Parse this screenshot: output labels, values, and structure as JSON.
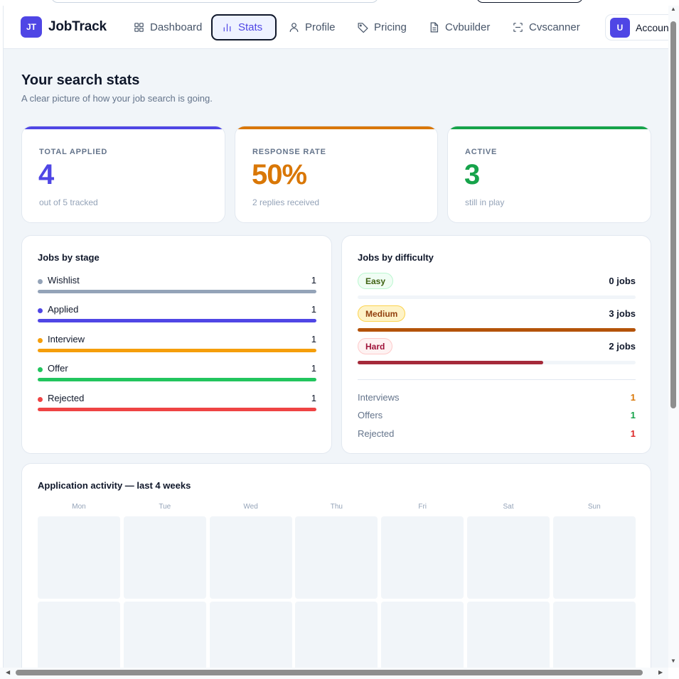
{
  "nav": {
    "logo_initials": "JT",
    "logo_text": "JobTrack",
    "items": [
      {
        "label": "Dashboard",
        "icon": "grid-icon"
      },
      {
        "label": "Stats",
        "icon": "bar-chart-icon"
      },
      {
        "label": "Profile",
        "icon": "user-icon"
      },
      {
        "label": "Pricing",
        "icon": "tag-icon"
      },
      {
        "label": "Cvbuilder",
        "icon": "document-icon"
      },
      {
        "label": "Cvscanner",
        "icon": "scan-icon"
      }
    ],
    "active_item": "Stats",
    "account_initial": "U",
    "account_label": "Accoun"
  },
  "page": {
    "title": "Your search stats",
    "subtitle": "A clear picture of how your job search is going."
  },
  "stats": [
    {
      "label": "TOTAL APPLIED",
      "value": "4",
      "note": "out of 5 tracked",
      "color": "#4f46e5"
    },
    {
      "label": "RESPONSE RATE",
      "value": "50%",
      "note": "2 replies received",
      "color": "#d97706"
    },
    {
      "label": "ACTIVE",
      "value": "3",
      "note": "still in play",
      "color": "#16a34a"
    }
  ],
  "stages": {
    "title": "Jobs by stage",
    "items": [
      {
        "name": "Wishlist",
        "count": "1",
        "color": "#94a3b8"
      },
      {
        "name": "Applied",
        "count": "1",
        "color": "#4f46e5"
      },
      {
        "name": "Interview",
        "count": "1",
        "color": "#f59e0b"
      },
      {
        "name": "Offer",
        "count": "1",
        "color": "#22c55e"
      },
      {
        "name": "Rejected",
        "count": "1",
        "color": "#ef4444"
      }
    ]
  },
  "difficulty": {
    "title": "Jobs by difficulty",
    "items": [
      {
        "name": "Easy",
        "count": "0 jobs",
        "fill_fraction": 0,
        "color": "#65a30d"
      },
      {
        "name": "Medium",
        "count": "3 jobs",
        "fill_fraction": 1,
        "color": "#b45309"
      },
      {
        "name": "Hard",
        "count": "2 jobs",
        "fill_fraction": 0.667,
        "color": "#a52a3a"
      }
    ],
    "summary": [
      {
        "label": "Interviews",
        "value": "1",
        "color": "#d97706"
      },
      {
        "label": "Offers",
        "value": "1",
        "color": "#16a34a"
      },
      {
        "label": "Rejected",
        "value": "1",
        "color": "#dc2626"
      }
    ]
  },
  "activity": {
    "title": "Application activity — last 4 weeks",
    "days": [
      "Mon",
      "Tue",
      "Wed",
      "Thu",
      "Fri",
      "Sat",
      "Sun"
    ]
  }
}
